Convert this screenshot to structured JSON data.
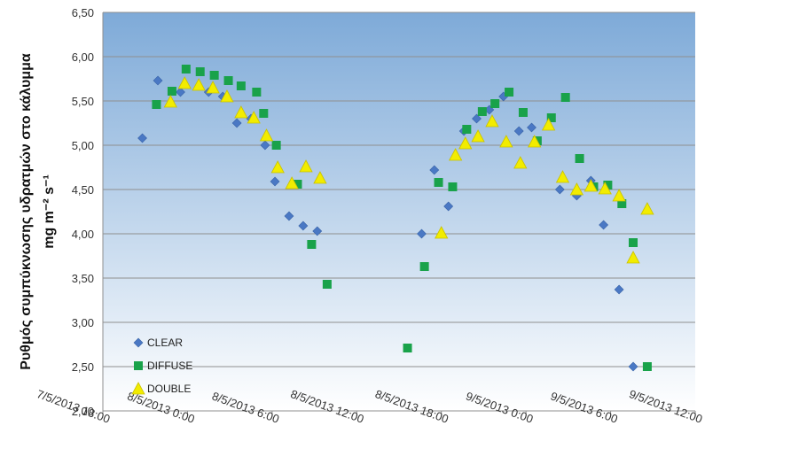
{
  "chart_data": {
    "type": "scatter",
    "ylabel_line1": "Ρυθμός συμπύκνωσης υδρατμών στο κάλυμμα",
    "ylabel_line2": "mg m⁻² s⁻¹",
    "ylim": [
      2.0,
      6.5
    ],
    "y_ticks": [
      "2,00",
      "2,50",
      "3,00",
      "3,50",
      "4,00",
      "4,50",
      "5,00",
      "5,50",
      "6,00",
      "6,50"
    ],
    "x_range_hours": [
      0,
      42
    ],
    "x_ticks": [
      "7/5/2013 18:00",
      "8/5/2013 0:00",
      "8/5/2013 6:00",
      "8/5/2013 12:00",
      "8/5/2013 18:00",
      "9/5/2013 0:00",
      "9/5/2013 6:00",
      "9/5/2013 12:00"
    ],
    "grid": true,
    "legend_position": "bottom-left",
    "colors": {
      "plot_top": "#7eaad8",
      "plot_bottom": "#ffffff"
    },
    "series": [
      {
        "name": "CLEAR",
        "marker": "diamond",
        "color": "#4a78c4",
        "x": [
          2.8,
          3.9,
          5.5,
          7.5,
          8.5,
          9.5,
          10.5,
          11.5,
          12.2,
          13.2,
          14.2,
          15.2,
          22.6,
          23.5,
          24.5,
          25.6,
          26.5,
          27.4,
          28.4,
          29.5,
          30.4,
          32.4,
          33.6,
          34.6,
          35.5,
          36.6
        ],
        "y": [
          5.08,
          5.73,
          5.6,
          5.6,
          5.55,
          5.25,
          5.3,
          5.0,
          4.59,
          4.2,
          4.09,
          4.03,
          4.0,
          4.72,
          4.31,
          5.16,
          5.3,
          5.4,
          5.55,
          5.16,
          5.2,
          4.5,
          4.43,
          4.6,
          4.1,
          3.37
        ]
      },
      {
        "name": "DIFFUSE",
        "marker": "square",
        "color": "#19a24a",
        "x": [
          3.8,
          4.9,
          5.9,
          6.9,
          7.9,
          8.9,
          9.8,
          10.9,
          11.4,
          12.3,
          13.8,
          14.8,
          15.9,
          21.6,
          22.8,
          23.8,
          24.8,
          25.8,
          26.9,
          27.8,
          28.8,
          29.8,
          30.8,
          31.8,
          32.8,
          33.8,
          34.8,
          35.8,
          36.8,
          37.6
        ],
        "y": [
          5.46,
          5.61,
          5.86,
          5.83,
          5.79,
          5.73,
          5.67,
          5.6,
          5.36,
          5.0,
          4.56,
          3.88,
          3.43,
          2.71,
          3.63,
          4.58,
          4.53,
          5.18,
          5.38,
          5.47,
          5.6,
          5.37,
          5.05,
          5.31,
          5.54,
          4.85,
          4.53,
          4.55,
          4.34,
          3.9
        ]
      },
      {
        "name": "DOUBLE",
        "marker": "triangle",
        "color": "#f2ec00",
        "x": [
          4.8,
          5.8,
          6.8,
          7.8,
          8.8,
          9.8,
          10.7,
          11.6,
          12.4,
          13.4,
          14.4,
          15.4,
          24.0,
          25.0,
          25.7,
          26.6,
          27.6,
          28.6,
          29.6,
          30.6,
          31.6,
          32.6,
          33.6,
          34.6,
          35.6,
          36.6,
          37.6
        ],
        "y": [
          5.49,
          5.7,
          5.68,
          5.65,
          5.55,
          5.37,
          5.31,
          5.11,
          4.75,
          4.57,
          4.76,
          4.63,
          4.01,
          4.89,
          5.02,
          5.1,
          5.27,
          5.04,
          4.8,
          5.04,
          5.23,
          4.64,
          4.5,
          4.54,
          4.51,
          4.43,
          3.73
        ]
      }
    ],
    "extra_points": {
      "CLEAR": {
        "x": [
          37.6
        ],
        "y": [
          2.5
        ]
      },
      "DIFFUSE": {
        "x": [
          38.6
        ],
        "y": [
          2.5
        ]
      },
      "DOUBLE": {
        "x": [
          38.6
        ],
        "y": [
          4.28
        ]
      }
    }
  }
}
